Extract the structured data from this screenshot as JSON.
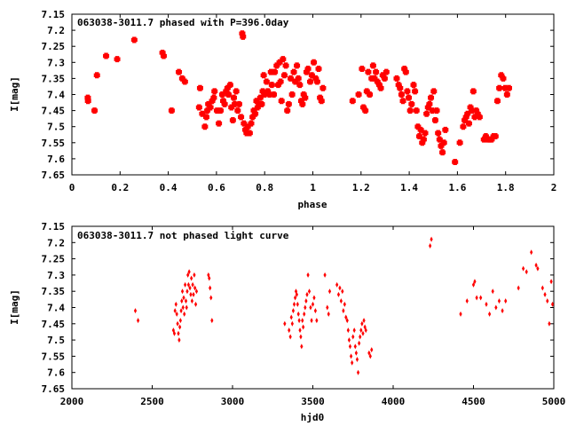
{
  "chart_data": [
    {
      "type": "scatter",
      "title": "063038-3011.7 phased with P=396.0day",
      "xlabel": "phase",
      "ylabel": "I[mag]",
      "xlim": [
        0,
        2
      ],
      "ylim": [
        7.65,
        7.15
      ],
      "y_inverted": true,
      "x_ticks": [
        "0",
        "0.2",
        "0.4",
        "0.6",
        "0.8",
        "1",
        "1.2",
        "1.4",
        "1.6",
        "1.8",
        "2"
      ],
      "y_ticks": [
        "7.15",
        "7.2",
        "7.25",
        "7.3",
        "7.35",
        "7.4",
        "7.45",
        "7.5",
        "7.55",
        "7.6",
        "7.65"
      ],
      "marker": "filled-cross",
      "color": "#ff0000",
      "points": [
        [
          0.066,
          7.41
        ],
        [
          0.067,
          7.42
        ],
        [
          0.094,
          7.45
        ],
        [
          0.104,
          7.34
        ],
        [
          0.142,
          7.28
        ],
        [
          0.188,
          7.29
        ],
        [
          0.259,
          7.23
        ],
        [
          0.376,
          7.27
        ],
        [
          0.381,
          7.28
        ],
        [
          0.414,
          7.45
        ],
        [
          0.444,
          7.33
        ],
        [
          0.458,
          7.35
        ],
        [
          0.469,
          7.36
        ],
        [
          0.528,
          7.44
        ],
        [
          0.532,
          7.38
        ],
        [
          0.541,
          7.46
        ],
        [
          0.552,
          7.5
        ],
        [
          0.558,
          7.47
        ],
        [
          0.562,
          7.45
        ],
        [
          0.566,
          7.43
        ],
        [
          0.575,
          7.44
        ],
        [
          0.582,
          7.42
        ],
        [
          0.589,
          7.41
        ],
        [
          0.592,
          7.39
        ],
        [
          0.602,
          7.45
        ],
        [
          0.61,
          7.49
        ],
        [
          0.617,
          7.45
        ],
        [
          0.624,
          7.4
        ],
        [
          0.628,
          7.42
        ],
        [
          0.634,
          7.43
        ],
        [
          0.64,
          7.39
        ],
        [
          0.646,
          7.38
        ],
        [
          0.65,
          7.4
        ],
        [
          0.657,
          7.37
        ],
        [
          0.662,
          7.44
        ],
        [
          0.668,
          7.48
        ],
        [
          0.672,
          7.41
        ],
        [
          0.676,
          7.43
        ],
        [
          0.682,
          7.39
        ],
        [
          0.688,
          7.45
        ],
        [
          0.694,
          7.43
        ],
        [
          0.702,
          7.47
        ],
        [
          0.707,
          7.21
        ],
        [
          0.71,
          7.22
        ],
        [
          0.714,
          7.49
        ],
        [
          0.72,
          7.51
        ],
        [
          0.725,
          7.52
        ],
        [
          0.73,
          7.5
        ],
        [
          0.738,
          7.52
        ],
        [
          0.744,
          7.49
        ],
        [
          0.75,
          7.47
        ],
        [
          0.755,
          7.45
        ],
        [
          0.761,
          7.46
        ],
        [
          0.766,
          7.42
        ],
        [
          0.771,
          7.44
        ],
        [
          0.777,
          7.43
        ],
        [
          0.782,
          7.41
        ],
        [
          0.788,
          7.43
        ],
        [
          0.792,
          7.39
        ],
        [
          0.796,
          7.34
        ],
        [
          0.8,
          7.4
        ],
        [
          0.808,
          7.36
        ],
        [
          0.813,
          7.39
        ],
        [
          0.82,
          7.4
        ],
        [
          0.826,
          7.33
        ],
        [
          0.83,
          7.37
        ],
        [
          0.838,
          7.4
        ],
        [
          0.842,
          7.33
        ],
        [
          0.85,
          7.31
        ],
        [
          0.856,
          7.37
        ],
        [
          0.862,
          7.3
        ],
        [
          0.866,
          7.36
        ],
        [
          0.87,
          7.42
        ],
        [
          0.876,
          7.29
        ],
        [
          0.882,
          7.34
        ],
        [
          0.888,
          7.31
        ],
        [
          0.894,
          7.45
        ],
        [
          0.9,
          7.43
        ],
        [
          0.908,
          7.35
        ],
        [
          0.914,
          7.4
        ],
        [
          0.921,
          7.33
        ],
        [
          0.927,
          7.36
        ],
        [
          0.934,
          7.31
        ],
        [
          0.94,
          7.35
        ],
        [
          0.946,
          7.37
        ],
        [
          0.952,
          7.42
        ],
        [
          0.957,
          7.43
        ],
        [
          0.962,
          7.4
        ],
        [
          0.968,
          7.41
        ],
        [
          0.974,
          7.33
        ],
        [
          0.98,
          7.32
        ],
        [
          0.989,
          7.36
        ],
        [
          0.996,
          7.34
        ],
        [
          1.004,
          7.3
        ],
        [
          1.012,
          7.35
        ],
        [
          1.018,
          7.36
        ],
        [
          1.024,
          7.32
        ],
        [
          1.03,
          7.41
        ],
        [
          1.036,
          7.42
        ],
        [
          1.042,
          7.38
        ],
        [
          1.165,
          7.42
        ],
        [
          1.19,
          7.4
        ],
        [
          1.204,
          7.32
        ],
        [
          1.21,
          7.44
        ],
        [
          1.218,
          7.45
        ],
        [
          1.224,
          7.39
        ],
        [
          1.23,
          7.33
        ],
        [
          1.236,
          7.4
        ],
        [
          1.244,
          7.35
        ],
        [
          1.25,
          7.31
        ],
        [
          1.256,
          7.35
        ],
        [
          1.262,
          7.33
        ],
        [
          1.268,
          7.36
        ],
        [
          1.276,
          7.37
        ],
        [
          1.282,
          7.38
        ],
        [
          1.29,
          7.34
        ],
        [
          1.298,
          7.35
        ],
        [
          1.305,
          7.33
        ],
        [
          1.348,
          7.35
        ],
        [
          1.356,
          7.37
        ],
        [
          1.362,
          7.38
        ],
        [
          1.368,
          7.4
        ],
        [
          1.374,
          7.42
        ],
        [
          1.38,
          7.32
        ],
        [
          1.386,
          7.33
        ],
        [
          1.392,
          7.39
        ],
        [
          1.398,
          7.41
        ],
        [
          1.404,
          7.45
        ],
        [
          1.41,
          7.43
        ],
        [
          1.418,
          7.37
        ],
        [
          1.424,
          7.39
        ],
        [
          1.43,
          7.45
        ],
        [
          1.436,
          7.5
        ],
        [
          1.442,
          7.53
        ],
        [
          1.448,
          7.51
        ],
        [
          1.454,
          7.55
        ],
        [
          1.46,
          7.54
        ],
        [
          1.466,
          7.52
        ],
        [
          1.472,
          7.46
        ],
        [
          1.478,
          7.44
        ],
        [
          1.484,
          7.43
        ],
        [
          1.49,
          7.41
        ],
        [
          1.496,
          7.45
        ],
        [
          1.502,
          7.39
        ],
        [
          1.508,
          7.48
        ],
        [
          1.514,
          7.45
        ],
        [
          1.52,
          7.52
        ],
        [
          1.526,
          7.54
        ],
        [
          1.532,
          7.56
        ],
        [
          1.538,
          7.58
        ],
        [
          1.544,
          7.55
        ],
        [
          1.55,
          7.51
        ],
        [
          1.59,
          7.61
        ],
        [
          1.61,
          7.55
        ],
        [
          1.624,
          7.5
        ],
        [
          1.63,
          7.48
        ],
        [
          1.636,
          7.47
        ],
        [
          1.642,
          7.46
        ],
        [
          1.648,
          7.49
        ],
        [
          1.654,
          7.44
        ],
        [
          1.66,
          7.45
        ],
        [
          1.666,
          7.39
        ],
        [
          1.672,
          7.47
        ],
        [
          1.678,
          7.45
        ],
        [
          1.684,
          7.46
        ],
        [
          1.692,
          7.47
        ],
        [
          1.71,
          7.54
        ],
        [
          1.718,
          7.53
        ],
        [
          1.726,
          7.54
        ],
        [
          1.734,
          7.54
        ],
        [
          1.742,
          7.54
        ],
        [
          1.75,
          7.53
        ],
        [
          1.758,
          7.53
        ],
        [
          1.766,
          7.42
        ],
        [
          1.774,
          7.38
        ],
        [
          1.782,
          7.34
        ],
        [
          1.79,
          7.35
        ],
        [
          1.798,
          7.38
        ],
        [
          1.806,
          7.4
        ],
        [
          1.814,
          7.38
        ]
      ]
    },
    {
      "type": "scatter",
      "title": "063038-3011.7 not phased light curve",
      "xlabel": "hjd0",
      "ylabel": "I[mag]",
      "xlim": [
        2000,
        5000
      ],
      "ylim": [
        7.65,
        7.15
      ],
      "y_inverted": true,
      "x_ticks": [
        "2000",
        "2500",
        "3000",
        "3500",
        "4000",
        "4500",
        "5000"
      ],
      "y_ticks": [
        "7.15",
        "7.2",
        "7.25",
        "7.3",
        "7.35",
        "7.4",
        "7.45",
        "7.5",
        "7.55",
        "7.6",
        "7.65"
      ],
      "marker": "small-diamond",
      "color": "#ff0000",
      "points": [
        [
          2395,
          7.41
        ],
        [
          2412,
          7.44
        ],
        [
          2632,
          7.47
        ],
        [
          2638,
          7.48
        ],
        [
          2642,
          7.41
        ],
        [
          2648,
          7.39
        ],
        [
          2653,
          7.42
        ],
        [
          2658,
          7.45
        ],
        [
          2663,
          7.48
        ],
        [
          2668,
          7.5
        ],
        [
          2672,
          7.46
        ],
        [
          2676,
          7.44
        ],
        [
          2680,
          7.41
        ],
        [
          2684,
          7.38
        ],
        [
          2688,
          7.35
        ],
        [
          2692,
          7.4
        ],
        [
          2696,
          7.37
        ],
        [
          2700,
          7.42
        ],
        [
          2705,
          7.33
        ],
        [
          2710,
          7.38
        ],
        [
          2714,
          7.4
        ],
        [
          2718,
          7.35
        ],
        [
          2722,
          7.3
        ],
        [
          2726,
          7.33
        ],
        [
          2730,
          7.29
        ],
        [
          2735,
          7.34
        ],
        [
          2740,
          7.36
        ],
        [
          2744,
          7.31
        ],
        [
          2748,
          7.38
        ],
        [
          2752,
          7.33
        ],
        [
          2757,
          7.36
        ],
        [
          2762,
          7.3
        ],
        [
          2766,
          7.34
        ],
        [
          2771,
          7.39
        ],
        [
          2776,
          7.35
        ],
        [
          2850,
          7.3
        ],
        [
          2855,
          7.31
        ],
        [
          2860,
          7.34
        ],
        [
          2866,
          7.37
        ],
        [
          2872,
          7.44
        ],
        [
          3325,
          7.45
        ],
        [
          3352,
          7.47
        ],
        [
          3360,
          7.49
        ],
        [
          3366,
          7.43
        ],
        [
          3372,
          7.45
        ],
        [
          3378,
          7.41
        ],
        [
          3384,
          7.39
        ],
        [
          3390,
          7.37
        ],
        [
          3395,
          7.35
        ],
        [
          3400,
          7.36
        ],
        [
          3405,
          7.39
        ],
        [
          3410,
          7.42
        ],
        [
          3415,
          7.44
        ],
        [
          3420,
          7.47
        ],
        [
          3425,
          7.49
        ],
        [
          3430,
          7.52
        ],
        [
          3435,
          7.44
        ],
        [
          3440,
          7.46
        ],
        [
          3446,
          7.42
        ],
        [
          3452,
          7.4
        ],
        [
          3458,
          7.38
        ],
        [
          3464,
          7.36
        ],
        [
          3470,
          7.3
        ],
        [
          3478,
          7.35
        ],
        [
          3486,
          7.4
        ],
        [
          3492,
          7.44
        ],
        [
          3500,
          7.39
        ],
        [
          3508,
          7.37
        ],
        [
          3516,
          7.41
        ],
        [
          3524,
          7.44
        ],
        [
          3575,
          7.3
        ],
        [
          3590,
          7.4
        ],
        [
          3598,
          7.42
        ],
        [
          3605,
          7.35
        ],
        [
          3650,
          7.33
        ],
        [
          3660,
          7.36
        ],
        [
          3668,
          7.34
        ],
        [
          3676,
          7.38
        ],
        [
          3684,
          7.35
        ],
        [
          3690,
          7.41
        ],
        [
          3698,
          7.39
        ],
        [
          3706,
          7.43
        ],
        [
          3714,
          7.44
        ],
        [
          3720,
          7.47
        ],
        [
          3726,
          7.5
        ],
        [
          3732,
          7.52
        ],
        [
          3738,
          7.55
        ],
        [
          3744,
          7.57
        ],
        [
          3750,
          7.49
        ],
        [
          3758,
          7.47
        ],
        [
          3764,
          7.52
        ],
        [
          3770,
          7.54
        ],
        [
          3776,
          7.56
        ],
        [
          3782,
          7.6
        ],
        [
          3788,
          7.51
        ],
        [
          3794,
          7.49
        ],
        [
          3800,
          7.47
        ],
        [
          3806,
          7.45
        ],
        [
          3812,
          7.48
        ],
        [
          3818,
          7.44
        ],
        [
          3824,
          7.46
        ],
        [
          3830,
          7.47
        ],
        [
          3850,
          7.54
        ],
        [
          3858,
          7.55
        ],
        [
          3866,
          7.53
        ],
        [
          4230,
          7.21
        ],
        [
          4238,
          7.19
        ],
        [
          4420,
          7.42
        ],
        [
          4460,
          7.38
        ],
        [
          4500,
          7.33
        ],
        [
          4508,
          7.32
        ],
        [
          4520,
          7.37
        ],
        [
          4545,
          7.37
        ],
        [
          4580,
          7.39
        ],
        [
          4600,
          7.42
        ],
        [
          4620,
          7.35
        ],
        [
          4640,
          7.4
        ],
        [
          4660,
          7.38
        ],
        [
          4680,
          7.41
        ],
        [
          4700,
          7.38
        ],
        [
          4780,
          7.34
        ],
        [
          4810,
          7.28
        ],
        [
          4830,
          7.29
        ],
        [
          4860,
          7.23
        ],
        [
          4890,
          7.27
        ],
        [
          4900,
          7.28
        ],
        [
          4930,
          7.34
        ],
        [
          4945,
          7.36
        ],
        [
          4960,
          7.38
        ],
        [
          4972,
          7.45
        ],
        [
          4984,
          7.32
        ],
        [
          4992,
          7.39
        ]
      ]
    }
  ]
}
